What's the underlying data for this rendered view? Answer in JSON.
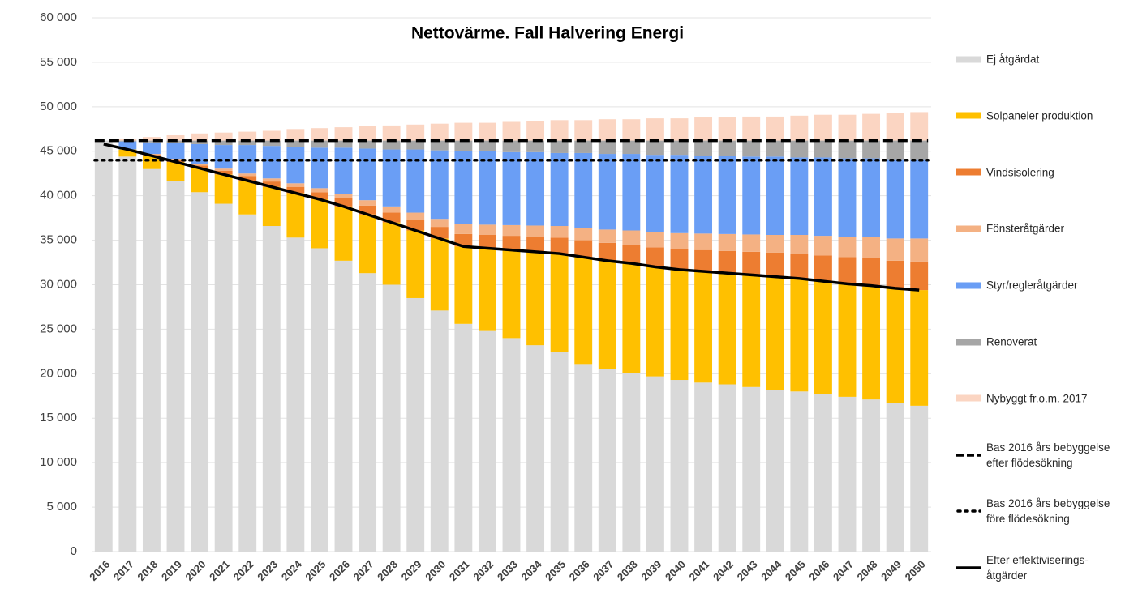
{
  "chart_data": {
    "type": "bar",
    "stacked": true,
    "title": "Nettovärme. Fall Halvering Energi",
    "categories": [
      "2016",
      "2017",
      "2018",
      "2019",
      "2020",
      "2021",
      "2022",
      "2023",
      "2024",
      "2025",
      "2026",
      "2027",
      "2028",
      "2029",
      "2030",
      "2031",
      "2032",
      "2033",
      "2034",
      "2035",
      "2036",
      "2037",
      "2038",
      "2039",
      "2040",
      "2041",
      "2042",
      "2043",
      "2044",
      "2045",
      "2046",
      "2047",
      "2048",
      "2049",
      "2050"
    ],
    "ylim": [
      0,
      60000
    ],
    "yticks": [
      0,
      {
        "value": 5000,
        "label": "5 000"
      },
      {
        "value": 10000,
        "label": "10 000"
      },
      {
        "value": 15000,
        "label": "15 000"
      },
      {
        "value": 20000,
        "label": "20 000"
      },
      {
        "value": 25000,
        "label": "25 000"
      },
      {
        "value": 30000,
        "label": "30 000"
      },
      {
        "value": 35000,
        "label": "35 000"
      },
      {
        "value": 40000,
        "label": "40 000"
      },
      {
        "value": 45000,
        "label": "45 000"
      },
      {
        "value": 50000,
        "label": "50 000"
      },
      {
        "value": 55000,
        "label": "55 000"
      },
      {
        "value": 60000,
        "label": "60 000"
      }
    ],
    "grid": true,
    "legend": "right",
    "series": [
      {
        "name": "Ej åtgärdat",
        "color": "#d9d9d9",
        "values": [
          46200,
          44400,
          43000,
          41700,
          40400,
          39100,
          37900,
          36600,
          35300,
          34100,
          32700,
          31300,
          30000,
          28500,
          27100,
          25600,
          24800,
          24000,
          23200,
          22400,
          21000,
          20500,
          20100,
          19700,
          19300,
          19000,
          18800,
          18500,
          18200,
          18000,
          17700,
          17400,
          17100,
          16700,
          16400
        ]
      },
      {
        "name": "Solpaneler produktion",
        "color": "#ffc000",
        "values": [
          0,
          800,
          1500,
          2100,
          2700,
          3300,
          3800,
          4400,
          5000,
          5500,
          6100,
          6600,
          7000,
          7600,
          8100,
          8700,
          9300,
          9900,
          10500,
          11100,
          12100,
          12200,
          12300,
          12300,
          12400,
          12500,
          12500,
          12600,
          12700,
          12700,
          12700,
          12700,
          12800,
          12900,
          13000
        ]
      },
      {
        "name": "Vindsisolering",
        "color": "#ed7d31",
        "values": [
          0,
          0,
          100,
          200,
          300,
          400,
          500,
          600,
          700,
          800,
          900,
          1000,
          1100,
          1200,
          1300,
          1400,
          1500,
          1600,
          1700,
          1800,
          1900,
          2000,
          2100,
          2200,
          2300,
          2400,
          2500,
          2600,
          2700,
          2800,
          2900,
          3000,
          3100,
          3100,
          3200
        ]
      },
      {
        "name": "Fönsteråtgärder",
        "color": "#f4b183",
        "values": [
          0,
          0,
          100,
          150,
          200,
          250,
          300,
          350,
          400,
          450,
          500,
          600,
          700,
          800,
          900,
          1100,
          1150,
          1200,
          1250,
          1300,
          1400,
          1500,
          1600,
          1700,
          1800,
          1850,
          1900,
          1950,
          2000,
          2100,
          2200,
          2300,
          2400,
          2500,
          2600
        ]
      },
      {
        "name": "Styr/regleråtgärder",
        "color": "#6a9ef5",
        "values": [
          0,
          900,
          1300,
          1750,
          2200,
          2650,
          3200,
          3650,
          4100,
          4550,
          5200,
          5800,
          6400,
          7100,
          7700,
          8200,
          8250,
          8200,
          8250,
          8200,
          8400,
          8500,
          8600,
          8700,
          8800,
          8750,
          8800,
          8750,
          8800,
          8700,
          8800,
          8800,
          8800,
          8900,
          8900
        ]
      },
      {
        "name": "Renoverat",
        "color": "#a6a6a6",
        "values": [
          0,
          100,
          200,
          300,
          400,
          500,
          500,
          600,
          700,
          800,
          800,
          900,
          1000,
          1000,
          1100,
          1200,
          1200,
          1300,
          1300,
          1400,
          1400,
          1500,
          1500,
          1600,
          1600,
          1700,
          1700,
          1800,
          1800,
          1900,
          1900,
          2000,
          2000,
          2100,
          2100
        ]
      },
      {
        "name": "Nybyggt fr.o.m. 2017",
        "color": "#fbd5c2",
        "values": [
          0,
          200,
          400,
          600,
          800,
          900,
          1000,
          1100,
          1300,
          1400,
          1500,
          1600,
          1700,
          1800,
          1900,
          2000,
          2000,
          2100,
          2200,
          2300,
          2300,
          2400,
          2400,
          2500,
          2500,
          2600,
          2600,
          2700,
          2700,
          2800,
          2900,
          2900,
          3000,
          3100,
          3200
        ]
      }
    ],
    "lines": [
      {
        "name": "Bas 2016 års bebyggelse efter flödesökning",
        "color": "#000000",
        "style": "dashed",
        "value": 46200
      },
      {
        "name": "Bas 2016 års bebyggelse före flödesökning",
        "color": "#000000",
        "style": "dotted",
        "value": 44000
      },
      {
        "name": "Efter effektiviserings-åtgärder",
        "color": "#000000",
        "style": "solid",
        "values": [
          45800,
          45200,
          44500,
          43800,
          43100,
          42400,
          41700,
          41000,
          40300,
          39600,
          38800,
          37900,
          37000,
          36100,
          35200,
          34300,
          34100,
          33900,
          33700,
          33500,
          33100,
          32700,
          32400,
          32000,
          31700,
          31500,
          31300,
          31100,
          30900,
          30700,
          30400,
          30100,
          29900,
          29600,
          29400
        ]
      }
    ]
  }
}
